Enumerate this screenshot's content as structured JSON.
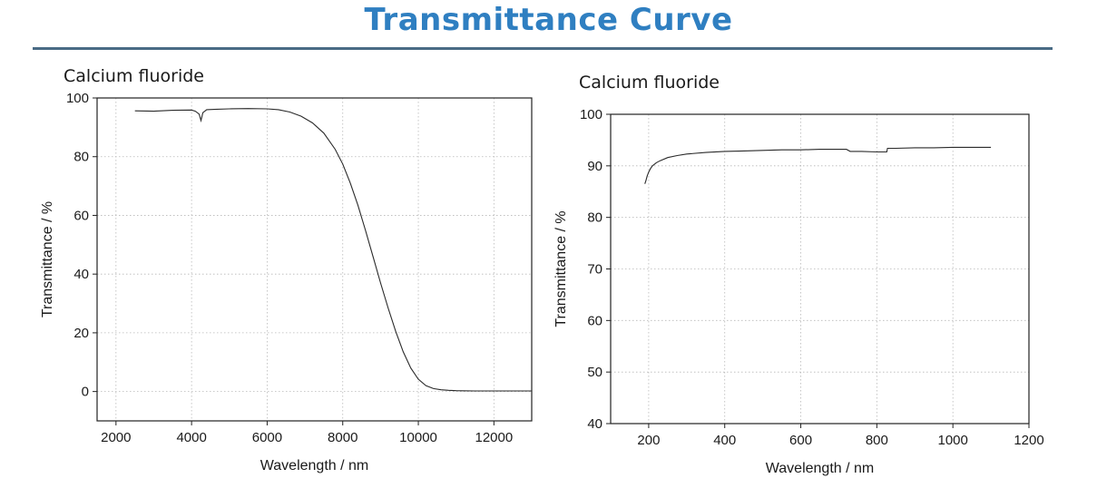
{
  "page_title": "Transmittance Curve",
  "chart_data": [
    {
      "type": "line",
      "title": "Calcium fluoride",
      "xlabel": "Wavelength / nm",
      "ylabel": "Transmittance / %",
      "xlim": [
        1500,
        13000
      ],
      "ylim": [
        -10,
        100
      ],
      "xticks": [
        2000,
        4000,
        6000,
        8000,
        10000,
        12000
      ],
      "yticks": [
        0,
        20,
        40,
        60,
        80,
        100
      ],
      "grid": true,
      "series": [
        {
          "x": [
            2500,
            3000,
            3500,
            4000,
            4100,
            4200,
            4250,
            4300,
            4400,
            4600,
            5000,
            5500,
            6000,
            6300,
            6600,
            6900,
            7200,
            7500,
            7800,
            8000,
            8200,
            8400,
            8600,
            8800,
            9000,
            9200,
            9400,
            9600,
            9800,
            10000,
            10200,
            10400,
            10600,
            10800,
            11000,
            11500,
            12000,
            12500,
            13000
          ],
          "y": [
            95.6,
            95.5,
            95.8,
            95.9,
            95.5,
            94.5,
            92.3,
            95.0,
            96.0,
            96.1,
            96.3,
            96.4,
            96.3,
            96.0,
            95.2,
            93.8,
            91.5,
            88.0,
            82.5,
            77.5,
            71.0,
            63.5,
            55.0,
            46.0,
            37.0,
            28.5,
            20.5,
            13.5,
            8.0,
            4.2,
            2.0,
            1.0,
            0.6,
            0.4,
            0.3,
            0.2,
            0.2,
            0.2,
            0.2
          ]
        }
      ]
    },
    {
      "type": "line",
      "title": "Calcium fluoride",
      "xlabel": "Wavelength / nm",
      "ylabel": "Transmittance / %",
      "xlim": [
        100,
        1200
      ],
      "ylim": [
        40,
        100
      ],
      "xticks": [
        200,
        400,
        600,
        800,
        1000,
        1200
      ],
      "yticks": [
        40,
        50,
        60,
        70,
        80,
        90,
        100
      ],
      "grid": true,
      "series": [
        {
          "x": [
            190,
            193,
            196,
            200,
            205,
            210,
            220,
            230,
            250,
            275,
            300,
            350,
            400,
            450,
            500,
            550,
            600,
            650,
            700,
            720,
            730,
            760,
            800,
            826,
            828,
            850,
            900,
            950,
            1000,
            1050,
            1100
          ],
          "y": [
            86.5,
            87.2,
            88.0,
            88.8,
            89.5,
            90.0,
            90.6,
            91.0,
            91.6,
            92.0,
            92.3,
            92.6,
            92.8,
            92.9,
            93.0,
            93.1,
            93.1,
            93.2,
            93.2,
            93.2,
            92.8,
            92.8,
            92.7,
            92.7,
            93.4,
            93.4,
            93.5,
            93.5,
            93.6,
            93.6,
            93.6
          ]
        }
      ]
    }
  ]
}
